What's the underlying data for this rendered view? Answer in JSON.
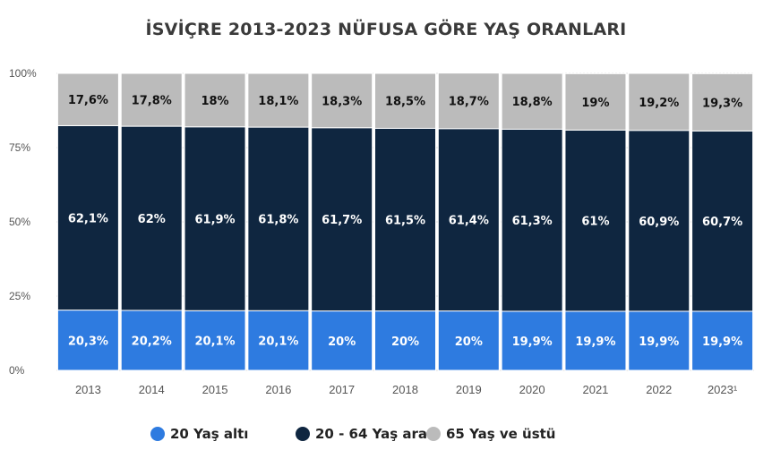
{
  "chart_data": {
    "type": "bar",
    "stacked": true,
    "title": "İSVİÇRE 2013-2023 NÜFUSA GÖRE YAŞ ORANLARI",
    "categories": [
      "2013",
      "2014",
      "2015",
      "2016",
      "2017",
      "2018",
      "2019",
      "2020",
      "2021",
      "2022",
      "2023¹"
    ],
    "series": [
      {
        "name": "20 Yaş altı",
        "color": "#2e7be0",
        "values": [
          20.3,
          20.2,
          20.1,
          20.1,
          20,
          20,
          20,
          19.9,
          19.9,
          19.9,
          19.9
        ],
        "labels": [
          "20,3%",
          "20,2%",
          "20,1%",
          "20,1%",
          "20%",
          "20%",
          "20%",
          "19,9%",
          "19,9%",
          "19,9%",
          "19,9%"
        ]
      },
      {
        "name": "20 - 64 Yaş arası",
        "color": "#0f2640",
        "values": [
          62.1,
          62,
          61.9,
          61.8,
          61.7,
          61.5,
          61.4,
          61.3,
          61,
          60.9,
          60.7
        ],
        "labels": [
          "62,1%",
          "62%",
          "61,9%",
          "61,8%",
          "61,7%",
          "61,5%",
          "61,4%",
          "61,3%",
          "61%",
          "60,9%",
          "60,7%"
        ]
      },
      {
        "name": "65 Yaş ve üstü",
        "color": "#bbbbbb",
        "values": [
          17.6,
          17.8,
          18,
          18.1,
          18.3,
          18.5,
          18.7,
          18.8,
          19,
          19.2,
          19.3
        ],
        "labels": [
          "17,6%",
          "17,8%",
          "18%",
          "18,1%",
          "18,3%",
          "18,5%",
          "18,7%",
          "18,8%",
          "19%",
          "19,2%",
          "19,3%"
        ]
      }
    ],
    "ylim": [
      0,
      100
    ],
    "yticks": [
      "0%",
      "25%",
      "50%",
      "75%",
      "100%"
    ],
    "grid": true,
    "legend_position": "bottom"
  }
}
